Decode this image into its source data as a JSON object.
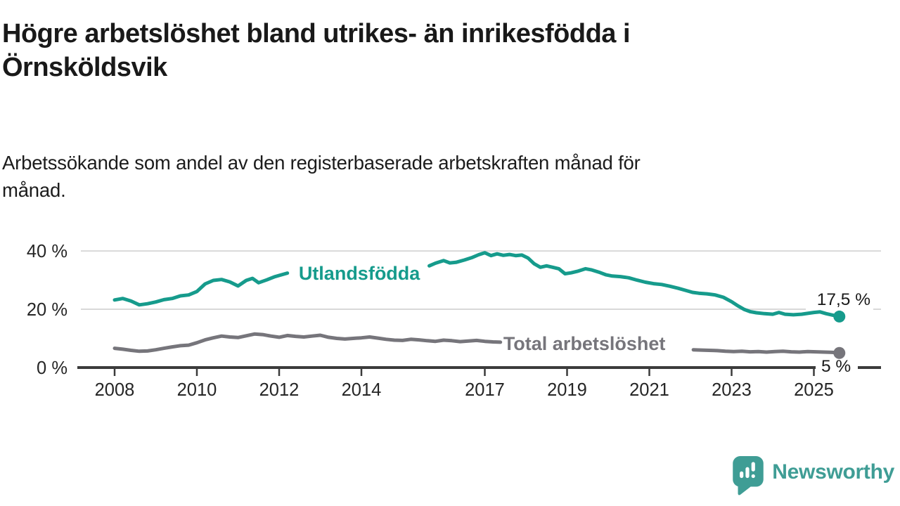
{
  "header": {
    "title_lines": [
      "Högre arbetslöshet bland utrikes- än inrikesfödda i",
      "Örnsköldsvik"
    ],
    "subtitle_lines": [
      "Arbetssökande som andel av den registerbaserade arbetskraften månad för",
      "månad."
    ]
  },
  "chart_data": {
    "type": "line",
    "title": "Högre arbetslöshet bland utrikes- än inrikesfödda i Örnsköldsvik",
    "subtitle": "Arbetssökande som andel av den registerbaserade arbetskraften månad för månad.",
    "unit": "%",
    "grid": true,
    "legend_position": "inline-labels",
    "x_axis": {
      "ticks": [
        {
          "value": 2008,
          "label": "2008"
        },
        {
          "value": 2010,
          "label": "2010"
        },
        {
          "value": 2012,
          "label": "2012"
        },
        {
          "value": 2014,
          "label": "2014"
        },
        {
          "value": 2017,
          "label": "2017"
        },
        {
          "value": 2019,
          "label": "2019"
        },
        {
          "value": 2021,
          "label": "2021"
        },
        {
          "value": 2023,
          "label": "2023"
        },
        {
          "value": 2025,
          "label": "2025"
        }
      ],
      "range": [
        2007.1,
        2026.2
      ]
    },
    "y_axis": {
      "ticks": [
        {
          "value": 0,
          "label": "0 %"
        },
        {
          "value": 20,
          "label": "20 %"
        },
        {
          "value": 40,
          "label": "40 %"
        }
      ],
      "range": [
        0,
        43
      ]
    },
    "series": [
      {
        "name": "Utlandsfödda",
        "color": "#169b8c",
        "end_label": "17,5 %",
        "end_value": 17.5,
        "inline_label": {
          "text": "Utlandsfödda",
          "x_year": 2013.95,
          "value": 32.3,
          "anchor": "middle"
        },
        "segments": [
          [
            [
              2008.0,
              23.2
            ],
            [
              2008.2,
              23.7
            ],
            [
              2008.4,
              22.8
            ],
            [
              2008.6,
              21.5
            ],
            [
              2008.8,
              21.9
            ],
            [
              2009.0,
              22.5
            ],
            [
              2009.2,
              23.3
            ],
            [
              2009.4,
              23.7
            ],
            [
              2009.6,
              24.6
            ],
            [
              2009.8,
              24.9
            ],
            [
              2010.0,
              26.1
            ],
            [
              2010.2,
              28.7
            ],
            [
              2010.4,
              29.9
            ],
            [
              2010.6,
              30.2
            ],
            [
              2010.8,
              29.4
            ],
            [
              2011.0,
              28.0
            ],
            [
              2011.2,
              29.9
            ],
            [
              2011.35,
              30.6
            ],
            [
              2011.5,
              29.1
            ],
            [
              2011.7,
              30.1
            ],
            [
              2011.9,
              31.2
            ],
            [
              2012.05,
              31.8
            ],
            [
              2012.2,
              32.4
            ]
          ],
          [
            [
              2015.65,
              34.9
            ],
            [
              2015.8,
              35.8
            ],
            [
              2016.0,
              36.7
            ],
            [
              2016.15,
              35.9
            ],
            [
              2016.3,
              36.1
            ],
            [
              2016.5,
              36.9
            ],
            [
              2016.7,
              37.8
            ],
            [
              2016.85,
              38.7
            ],
            [
              2017.0,
              39.4
            ],
            [
              2017.15,
              38.4
            ],
            [
              2017.3,
              39.0
            ],
            [
              2017.45,
              38.5
            ],
            [
              2017.6,
              38.8
            ],
            [
              2017.75,
              38.4
            ],
            [
              2017.9,
              38.6
            ],
            [
              2018.05,
              37.6
            ],
            [
              2018.2,
              35.6
            ],
            [
              2018.35,
              34.4
            ],
            [
              2018.5,
              34.9
            ],
            [
              2018.65,
              34.4
            ],
            [
              2018.8,
              33.9
            ],
            [
              2018.95,
              32.2
            ],
            [
              2019.1,
              32.5
            ],
            [
              2019.25,
              33.0
            ],
            [
              2019.45,
              33.9
            ],
            [
              2019.6,
              33.5
            ],
            [
              2019.8,
              32.6
            ],
            [
              2019.95,
              31.8
            ],
            [
              2020.1,
              31.4
            ],
            [
              2020.3,
              31.2
            ],
            [
              2020.5,
              30.8
            ],
            [
              2020.7,
              30.0
            ],
            [
              2020.9,
              29.3
            ],
            [
              2021.1,
              28.8
            ],
            [
              2021.3,
              28.5
            ],
            [
              2021.5,
              27.9
            ],
            [
              2021.7,
              27.2
            ],
            [
              2021.9,
              26.4
            ],
            [
              2022.05,
              25.8
            ],
            [
              2022.2,
              25.5
            ],
            [
              2022.4,
              25.3
            ],
            [
              2022.6,
              24.9
            ],
            [
              2022.8,
              24.1
            ],
            [
              2023.0,
              22.6
            ],
            [
              2023.15,
              21.2
            ],
            [
              2023.3,
              20.0
            ],
            [
              2023.45,
              19.2
            ],
            [
              2023.6,
              18.8
            ],
            [
              2023.8,
              18.5
            ],
            [
              2024.0,
              18.3
            ],
            [
              2024.15,
              18.9
            ],
            [
              2024.3,
              18.3
            ],
            [
              2024.5,
              18.1
            ],
            [
              2024.7,
              18.3
            ],
            [
              2024.85,
              18.6
            ],
            [
              2025.0,
              18.9
            ],
            [
              2025.15,
              19.1
            ],
            [
              2025.3,
              18.5
            ],
            [
              2025.45,
              18.0
            ],
            [
              2025.62,
              17.5
            ]
          ]
        ]
      },
      {
        "name": "Total arbetslöshet",
        "color": "#76757b",
        "end_label": "5 %",
        "end_value": 5,
        "inline_label": {
          "text": "Total arbetslöshet",
          "x_year": 2017.45,
          "value": 8.2,
          "anchor": "start"
        },
        "segments": [
          [
            [
              2008.0,
              6.6
            ],
            [
              2008.2,
              6.3
            ],
            [
              2008.4,
              5.9
            ],
            [
              2008.6,
              5.6
            ],
            [
              2008.8,
              5.7
            ],
            [
              2009.0,
              6.1
            ],
            [
              2009.2,
              6.6
            ],
            [
              2009.4,
              7.1
            ],
            [
              2009.6,
              7.5
            ],
            [
              2009.8,
              7.7
            ],
            [
              2010.0,
              8.5
            ],
            [
              2010.2,
              9.5
            ],
            [
              2010.4,
              10.2
            ],
            [
              2010.6,
              10.8
            ],
            [
              2010.8,
              10.5
            ],
            [
              2011.0,
              10.3
            ],
            [
              2011.2,
              10.9
            ],
            [
              2011.4,
              11.5
            ],
            [
              2011.6,
              11.3
            ],
            [
              2011.8,
              10.8
            ],
            [
              2012.0,
              10.4
            ],
            [
              2012.2,
              11.0
            ],
            [
              2012.4,
              10.7
            ],
            [
              2012.6,
              10.5
            ],
            [
              2012.8,
              10.8
            ],
            [
              2013.0,
              11.1
            ],
            [
              2013.2,
              10.4
            ],
            [
              2013.4,
              10.0
            ],
            [
              2013.6,
              9.8
            ],
            [
              2013.8,
              10.0
            ],
            [
              2014.0,
              10.2
            ],
            [
              2014.2,
              10.5
            ],
            [
              2014.4,
              10.1
            ],
            [
              2014.6,
              9.7
            ],
            [
              2014.8,
              9.4
            ],
            [
              2015.0,
              9.3
            ],
            [
              2015.2,
              9.7
            ],
            [
              2015.4,
              9.5
            ],
            [
              2015.6,
              9.2
            ],
            [
              2015.8,
              9.0
            ],
            [
              2016.0,
              9.4
            ],
            [
              2016.2,
              9.2
            ],
            [
              2016.4,
              8.9
            ],
            [
              2016.6,
              9.1
            ],
            [
              2016.8,
              9.3
            ],
            [
              2017.0,
              9.0
            ],
            [
              2017.2,
              8.8
            ],
            [
              2017.38,
              8.7
            ]
          ],
          [
            [
              2022.07,
              6.1
            ],
            [
              2022.25,
              6.0
            ],
            [
              2022.45,
              5.9
            ],
            [
              2022.65,
              5.8
            ],
            [
              2022.85,
              5.6
            ],
            [
              2023.05,
              5.5
            ],
            [
              2023.25,
              5.6
            ],
            [
              2023.45,
              5.4
            ],
            [
              2023.65,
              5.5
            ],
            [
              2023.85,
              5.3
            ],
            [
              2024.05,
              5.5
            ],
            [
              2024.25,
              5.6
            ],
            [
              2024.45,
              5.4
            ],
            [
              2024.65,
              5.3
            ],
            [
              2024.85,
              5.5
            ],
            [
              2025.05,
              5.4
            ],
            [
              2025.25,
              5.3
            ],
            [
              2025.45,
              5.2
            ],
            [
              2025.62,
              5.0
            ]
          ]
        ]
      }
    ],
    "colors": {
      "grid": "#d9d9d9",
      "axis": "#3b3b3b",
      "tick_label": "#262626",
      "value_label": "#1a1a1a"
    }
  },
  "branding": {
    "logo_text": "Newsworthy",
    "logo_icon": "newsworthy-speech-bubble-bars-icon",
    "color": "#3f9d95"
  }
}
